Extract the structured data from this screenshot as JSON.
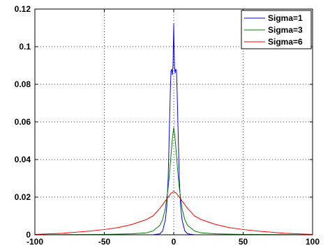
{
  "chart_data": {
    "type": "line",
    "title": "",
    "xlabel": "",
    "ylabel": "",
    "xlim": [
      -100,
      100
    ],
    "ylim": [
      0,
      0.12
    ],
    "grid": true,
    "legend_position": "top-right",
    "x_ticks": [
      -100,
      -50,
      0,
      50,
      100
    ],
    "x_tick_labels": [
      "-100",
      "-50",
      "0",
      "50",
      "100"
    ],
    "y_ticks": [
      0,
      0.02,
      0.04,
      0.06,
      0.08,
      0.1,
      0.12
    ],
    "y_tick_labels": [
      "0",
      "0.02",
      "0.04",
      "0.06",
      "0.08",
      "0.1",
      "0.12"
    ],
    "series": [
      {
        "name": "Sigma=1",
        "color": "#0000ff",
        "x": [
          -100,
          -30,
          -15,
          -10,
          -8,
          -6,
          -5,
          -4,
          -3,
          -2.5,
          -2,
          -1.5,
          -1,
          -0.5,
          0,
          0.5,
          1,
          1.5,
          2,
          2.5,
          3,
          4,
          5,
          6,
          8,
          10,
          15,
          30,
          100
        ],
        "y": [
          0,
          0,
          0,
          0.0005,
          0.002,
          0.008,
          0.015,
          0.03,
          0.06,
          0.075,
          0.087,
          0.088,
          0.085,
          0.09,
          0.112,
          0.09,
          0.086,
          0.088,
          0.087,
          0.075,
          0.06,
          0.03,
          0.015,
          0.008,
          0.002,
          0.0005,
          0,
          0,
          0
        ]
      },
      {
        "name": "Sigma=3",
        "color": "#008000",
        "x": [
          -100,
          -50,
          -30,
          -20,
          -15,
          -10,
          -8,
          -6,
          -4,
          -3,
          -2,
          -1,
          0,
          1,
          2,
          3,
          4,
          6,
          8,
          10,
          15,
          20,
          30,
          50,
          100
        ],
        "y": [
          0,
          0.0002,
          0.0005,
          0.001,
          0.002,
          0.005,
          0.008,
          0.014,
          0.025,
          0.033,
          0.042,
          0.051,
          0.057,
          0.051,
          0.042,
          0.033,
          0.025,
          0.014,
          0.008,
          0.005,
          0.002,
          0.001,
          0.0005,
          0.0002,
          0
        ]
      },
      {
        "name": "Sigma=6",
        "color": "#ff0000",
        "x": [
          -100,
          -80,
          -60,
          -50,
          -40,
          -30,
          -20,
          -15,
          -10,
          -5,
          -2,
          0,
          2,
          5,
          10,
          15,
          20,
          30,
          40,
          50,
          60,
          80,
          100
        ],
        "y": [
          0.0002,
          0.0008,
          0.002,
          0.0028,
          0.0038,
          0.0055,
          0.008,
          0.01,
          0.014,
          0.019,
          0.022,
          0.023,
          0.022,
          0.019,
          0.014,
          0.01,
          0.008,
          0.0055,
          0.0038,
          0.0028,
          0.002,
          0.0008,
          0.0002
        ]
      }
    ]
  }
}
